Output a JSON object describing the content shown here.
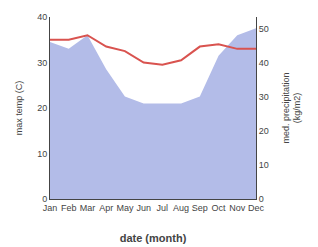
{
  "chart_data": {
    "type": "line",
    "xlabel": "date (month)",
    "ylabel": "max temp (C)",
    "y2label": "med. precipitation\n(kg/m2)",
    "categories": [
      "Jan",
      "Feb",
      "Mar",
      "Apr",
      "May",
      "Jun",
      "Jul",
      "Aug",
      "Sep",
      "Oct",
      "Nov",
      "Dec"
    ],
    "series": [
      {
        "type": "line",
        "color": "#d9534f",
        "values": [
          35.0,
          35.0,
          36.0,
          33.5,
          32.5,
          30.0,
          29.5,
          30.5,
          33.5,
          34.0,
          33.0,
          33.0
        ]
      },
      {
        "type": "area",
        "axis": "y2",
        "color": "#b3bce8",
        "values": [
          46,
          44,
          48,
          38,
          30,
          28,
          28,
          28,
          30,
          42,
          48,
          50
        ]
      }
    ],
    "ylim": [
      0,
      40
    ],
    "yticks": [
      0,
      10,
      20,
      30,
      40
    ],
    "y2lim": [
      0,
      53.33
    ],
    "y2ticks": [
      0,
      10,
      20,
      30,
      40,
      50
    ],
    "grid": false
  }
}
